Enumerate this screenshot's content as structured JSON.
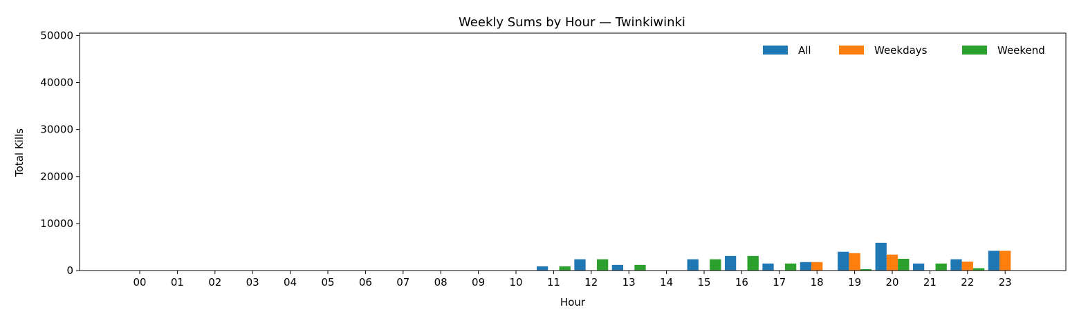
{
  "chart_data": {
    "type": "bar",
    "title": "Weekly Sums by Hour — Twinkiwinki",
    "xlabel": "Hour",
    "ylabel": "Total Kills",
    "ylim": [
      0,
      50500
    ],
    "yticks": [
      0,
      10000,
      20000,
      30000,
      40000,
      50000
    ],
    "grid": false,
    "legend_position": "top-right",
    "categories": [
      "00",
      "01",
      "02",
      "03",
      "04",
      "05",
      "06",
      "07",
      "08",
      "09",
      "10",
      "11",
      "12",
      "13",
      "14",
      "15",
      "16",
      "17",
      "18",
      "19",
      "20",
      "21",
      "22",
      "23"
    ],
    "series": [
      {
        "name": "All",
        "color": "#1f77b4",
        "values": [
          0,
          0,
          0,
          0,
          0,
          0,
          0,
          0,
          0,
          0,
          0,
          900,
          2400,
          1200,
          0,
          2400,
          3100,
          1500,
          1800,
          4000,
          5900,
          1500,
          2400,
          4200
        ]
      },
      {
        "name": "Weekdays",
        "color": "#ff7f0e",
        "values": [
          0,
          0,
          0,
          0,
          0,
          0,
          0,
          0,
          0,
          0,
          0,
          0,
          0,
          0,
          0,
          0,
          0,
          0,
          1800,
          3700,
          3400,
          0,
          1900,
          4200
        ]
      },
      {
        "name": "Weekend",
        "color": "#2ca02c",
        "values": [
          0,
          0,
          0,
          0,
          0,
          0,
          0,
          0,
          0,
          0,
          0,
          900,
          2400,
          1200,
          0,
          2400,
          3100,
          1500,
          0,
          300,
          2500,
          1500,
          500,
          0
        ]
      }
    ]
  }
}
